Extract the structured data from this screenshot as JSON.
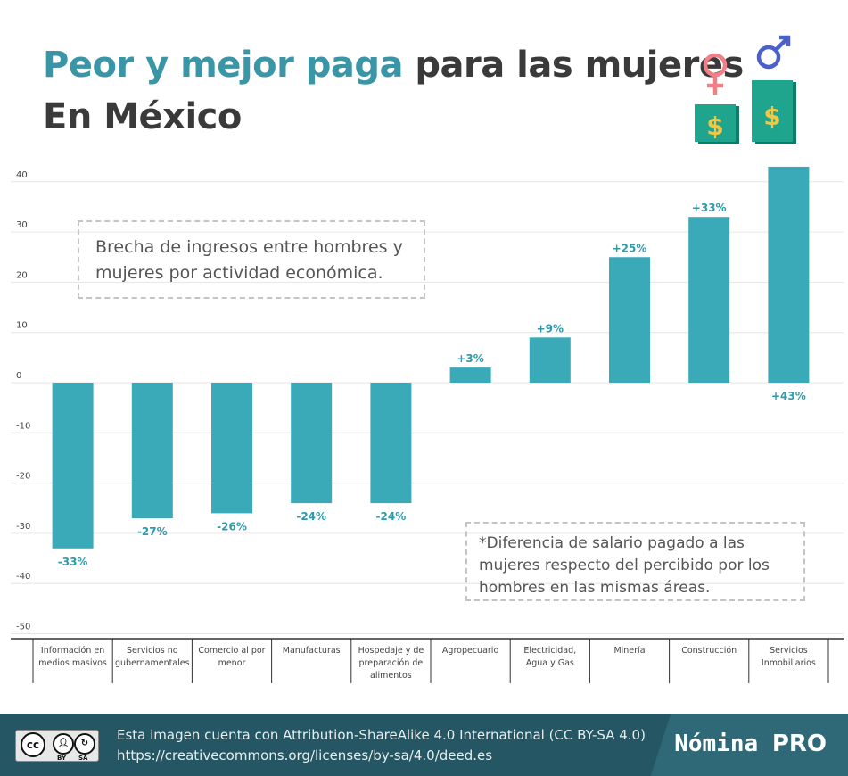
{
  "title": {
    "highlight": "Peor y mejor paga",
    "rest": " para las mujeres",
    "line2": "En México"
  },
  "colors": {
    "bar": "#3aa9b8",
    "accent": "#3a96a6",
    "label": "#2f9aaa",
    "female_icon": "#f07f86",
    "male_icon": "#4b60c8",
    "money_box": "#1fa48d",
    "footer": "#255663"
  },
  "icons": [
    "female-symbol-icon",
    "male-symbol-icon",
    "dollar-icon"
  ],
  "icon_text": {
    "dollar": "$"
  },
  "note_top": "Brecha de ingresos entre hombres y mujeres por actividad económica.",
  "note_bottom": "*Diferencia de salario pagado a las mujeres respecto del percibido por los hombres en las mismas áreas.",
  "chart_data": {
    "type": "bar",
    "categories": [
      "Información en medios masivos",
      "Servicios no gubernamentales",
      "Comercio al por menor",
      "Manufacturas",
      "Hospedaje y de preparación de alimentos",
      "Agropecuario",
      "Electricidad, Agua y Gas",
      "Minería",
      "Construcción",
      "Servicios Inmobiliarios"
    ],
    "values": [
      -33,
      -27,
      -26,
      -24,
      -24,
      3,
      9,
      25,
      33,
      43
    ],
    "data_labels": [
      "-33%",
      "-27%",
      "-26%",
      "-24%",
      "-24%",
      "+3%",
      "+9%",
      "+25%",
      "+33%",
      "+43%"
    ],
    "yticks": [
      "40",
      "30",
      "20",
      "10",
      "0",
      "-10",
      "-20",
      "-30",
      "-40",
      "-50"
    ],
    "ylim": [
      -50,
      40
    ],
    "grid": true,
    "legend": "none"
  },
  "footer": {
    "cc_badge": {
      "main": "cc",
      "by": "BY",
      "sa": "SA"
    },
    "license_line1": "Esta imagen cuenta con Attribution-ShareAlike 4.0 International (CC BY-SA 4.0)",
    "license_line2": "https://creativecommons.org/licenses/by-sa/4.0/deed.es",
    "brand_main": "Nómina",
    "brand_pro": "PRO"
  }
}
